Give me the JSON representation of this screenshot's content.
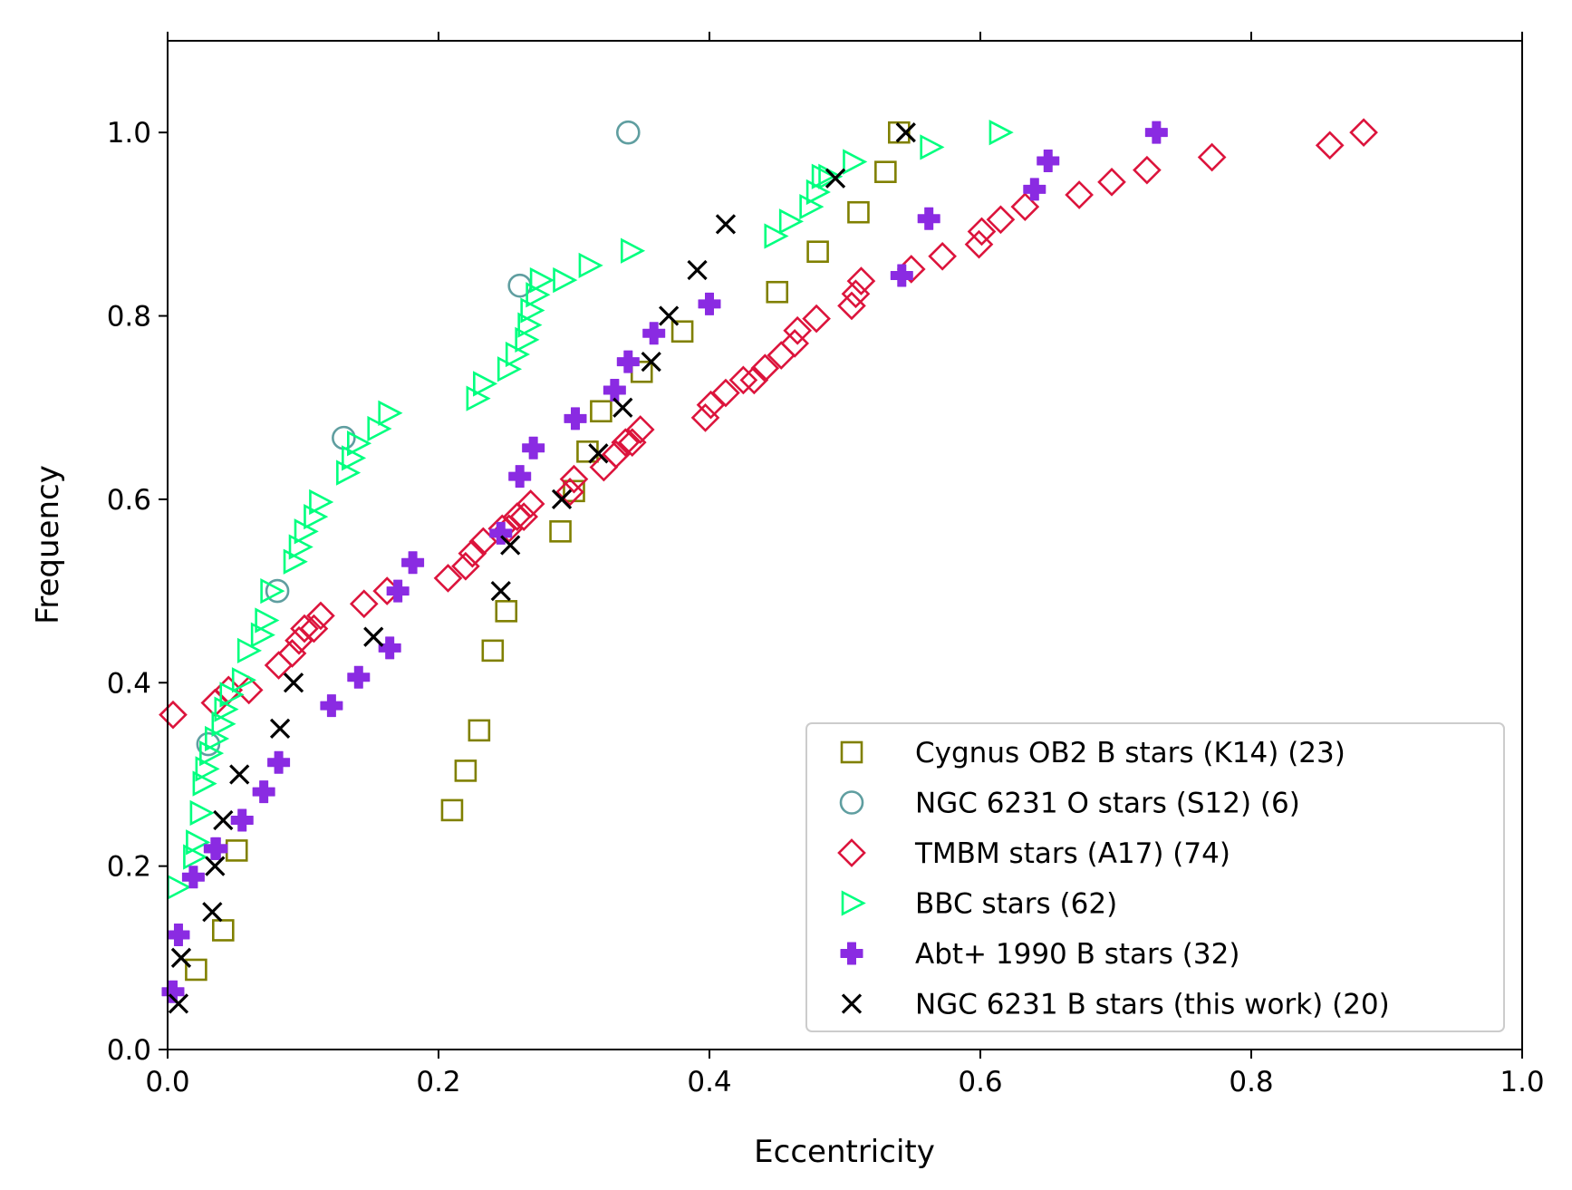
{
  "chart_data": {
    "type": "scatter",
    "title": "",
    "xlabel": "Eccentricity",
    "ylabel": "Frequency",
    "xlim": [
      0.0,
      1.0
    ],
    "ylim": [
      0.0,
      1.1
    ],
    "xticks": [
      "0.0",
      "0.2",
      "0.4",
      "0.6",
      "0.8",
      "1.0"
    ],
    "yticks": [
      "0.0",
      "0.2",
      "0.4",
      "0.6",
      "0.8",
      "1.0"
    ],
    "legend_position": "bottom-right",
    "grid": false,
    "series": [
      {
        "name": "Cygnus OB2 B stars (K14) (23)",
        "marker": "square",
        "color": "#808000",
        "filled": false,
        "x": [
          0.021,
          0.041,
          0.051,
          0.21,
          0.22,
          0.23,
          0.24,
          0.25,
          0.29,
          0.3,
          0.31,
          0.32,
          0.35,
          0.38,
          0.45,
          0.48,
          0.51,
          0.53,
          0.54
        ],
        "y": [
          0.087,
          0.13,
          0.217,
          0.261,
          0.304,
          0.348,
          0.435,
          0.478,
          0.565,
          0.609,
          0.652,
          0.696,
          0.739,
          0.783,
          0.826,
          0.87,
          0.913,
          0.957,
          1.0
        ]
      },
      {
        "name": "NGC 6231 O stars (S12) (6)",
        "marker": "circle",
        "color": "#5f9ea0",
        "filled": false,
        "x": [
          0.03,
          0.081,
          0.13,
          0.26,
          0.34
        ],
        "y": [
          0.333,
          0.5,
          0.667,
          0.833,
          1.0
        ]
      },
      {
        "name": "TMBM stars (A17) (74)",
        "marker": "diamond",
        "color": "#dc143c",
        "filled": false,
        "x": [
          0.004,
          0.035,
          0.045,
          0.06,
          0.082,
          0.092,
          0.097,
          0.101,
          0.108,
          0.113,
          0.145,
          0.162,
          0.207,
          0.22,
          0.225,
          0.233,
          0.247,
          0.252,
          0.258,
          0.263,
          0.268,
          0.297,
          0.3,
          0.322,
          0.331,
          0.338,
          0.343,
          0.349,
          0.397,
          0.401,
          0.412,
          0.425,
          0.433,
          0.441,
          0.453,
          0.463,
          0.465,
          0.479,
          0.505,
          0.508,
          0.512,
          0.549,
          0.572,
          0.599,
          0.601,
          0.615,
          0.633,
          0.673,
          0.697,
          0.723,
          0.771,
          0.858,
          0.883
        ],
        "y": [
          0.365,
          0.378,
          0.392,
          0.392,
          0.419,
          0.432,
          0.446,
          0.459,
          0.459,
          0.473,
          0.486,
          0.5,
          0.514,
          0.527,
          0.541,
          0.554,
          0.568,
          0.568,
          0.581,
          0.581,
          0.595,
          0.608,
          0.622,
          0.635,
          0.649,
          0.662,
          0.662,
          0.676,
          0.689,
          0.703,
          0.716,
          0.73,
          0.73,
          0.743,
          0.757,
          0.77,
          0.784,
          0.797,
          0.811,
          0.824,
          0.838,
          0.851,
          0.865,
          0.878,
          0.892,
          0.905,
          0.919,
          0.932,
          0.946,
          0.959,
          0.973,
          0.986,
          1.0
        ]
      },
      {
        "name": "BBC stars (62)",
        "marker": "triangle-right",
        "color": "#00ff7f",
        "filled": false,
        "x": [
          0.007,
          0.019,
          0.021,
          0.024,
          0.026,
          0.028,
          0.031,
          0.035,
          0.04,
          0.042,
          0.046,
          0.055,
          0.059,
          0.069,
          0.072,
          0.076,
          0.093,
          0.097,
          0.101,
          0.108,
          0.112,
          0.132,
          0.136,
          0.14,
          0.155,
          0.163,
          0.228,
          0.233,
          0.251,
          0.257,
          0.264,
          0.266,
          0.268,
          0.272,
          0.275,
          0.292,
          0.311,
          0.342,
          0.448,
          0.459,
          0.474,
          0.479,
          0.483,
          0.488,
          0.506,
          0.563,
          0.614
        ],
        "y": [
          0.177,
          0.21,
          0.226,
          0.258,
          0.29,
          0.306,
          0.323,
          0.339,
          0.355,
          0.371,
          0.387,
          0.403,
          0.435,
          0.452,
          0.468,
          0.5,
          0.532,
          0.548,
          0.565,
          0.581,
          0.597,
          0.629,
          0.645,
          0.661,
          0.677,
          0.694,
          0.71,
          0.726,
          0.742,
          0.758,
          0.774,
          0.79,
          0.806,
          0.823,
          0.839,
          0.839,
          0.855,
          0.871,
          0.887,
          0.903,
          0.919,
          0.935,
          0.952,
          0.952,
          0.968,
          0.984,
          1.0
        ]
      },
      {
        "name": "Abt+ 1990 B stars (32)",
        "marker": "plus-filled",
        "color": "#8a2be2",
        "filled": true,
        "x": [
          0.004,
          0.008,
          0.019,
          0.035,
          0.036,
          0.055,
          0.071,
          0.082,
          0.121,
          0.141,
          0.164,
          0.17,
          0.181,
          0.246,
          0.26,
          0.27,
          0.301,
          0.33,
          0.34,
          0.359,
          0.4,
          0.542,
          0.562,
          0.64,
          0.65,
          0.73
        ],
        "y": [
          0.063,
          0.125,
          0.188,
          0.219,
          0.219,
          0.25,
          0.281,
          0.313,
          0.375,
          0.406,
          0.438,
          0.5,
          0.531,
          0.563,
          0.625,
          0.656,
          0.688,
          0.719,
          0.75,
          0.781,
          0.813,
          0.844,
          0.906,
          0.938,
          0.969,
          1.0
        ]
      },
      {
        "name": "NGC 6231 B stars (this work) (20)",
        "marker": "x",
        "color": "#000000",
        "filled": false,
        "x": [
          0.008,
          0.01,
          0.033,
          0.035,
          0.041,
          0.053,
          0.083,
          0.093,
          0.152,
          0.246,
          0.253,
          0.291,
          0.318,
          0.336,
          0.357,
          0.37,
          0.391,
          0.412,
          0.493,
          0.545
        ],
        "y": [
          0.05,
          0.1,
          0.15,
          0.2,
          0.25,
          0.3,
          0.35,
          0.4,
          0.45,
          0.5,
          0.55,
          0.6,
          0.65,
          0.7,
          0.75,
          0.8,
          0.85,
          0.9,
          0.95,
          1.0
        ]
      }
    ]
  }
}
